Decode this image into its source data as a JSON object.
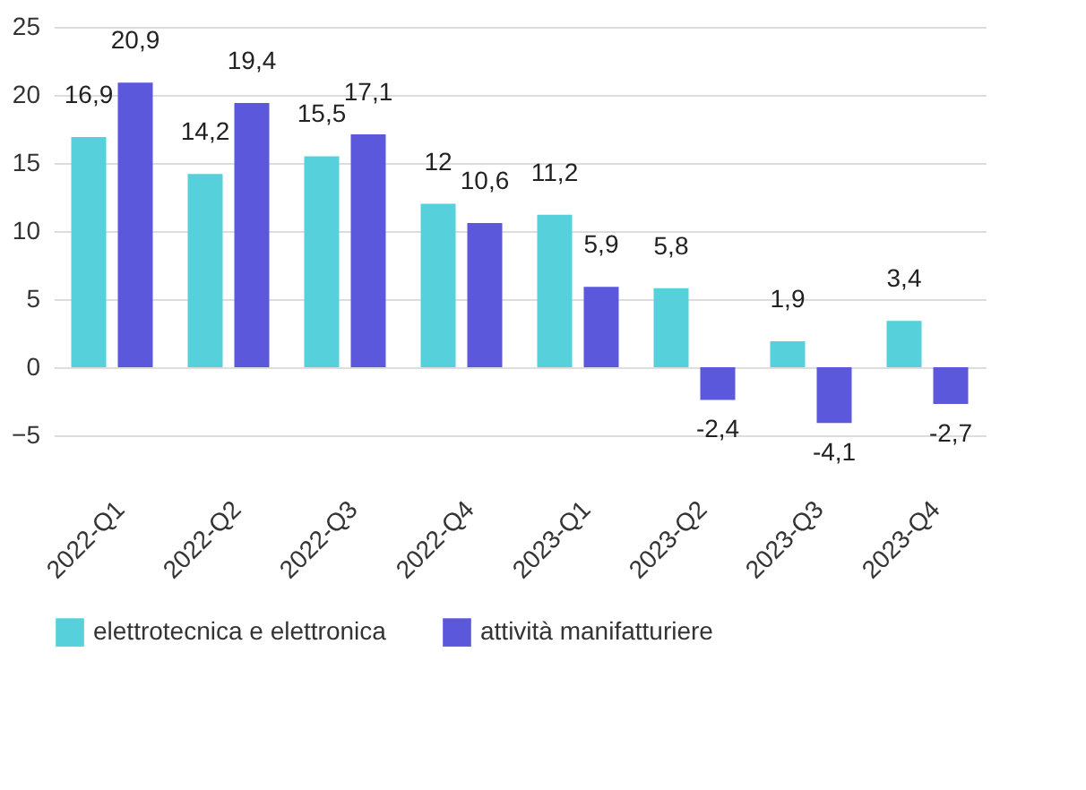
{
  "chart_data": {
    "type": "bar",
    "categories": [
      "2022-Q1",
      "2022-Q2",
      "2022-Q3",
      "2022-Q4",
      "2023-Q1",
      "2023-Q2",
      "2023-Q3",
      "2023-Q4"
    ],
    "series": [
      {
        "name": "elettrotecnica e elettronica",
        "color": "#56d1db",
        "values": [
          16.9,
          14.2,
          15.5,
          12,
          11.2,
          5.8,
          1.9,
          3.4
        ],
        "value_labels": [
          "16,9",
          "14,2",
          "15,5",
          "12",
          "11,2",
          "5,8",
          "1,9",
          "3,4"
        ]
      },
      {
        "name": "attività manifatturiere",
        "color": "#5b58db",
        "values": [
          20.9,
          19.4,
          17.1,
          10.6,
          5.9,
          -2.4,
          -4.1,
          -2.7
        ],
        "value_labels": [
          "20,9",
          "19,4",
          "17,1",
          "10,6",
          "5,9",
          "-2,4",
          "-4,1",
          "-2,7"
        ]
      }
    ],
    "ylim": [
      -5,
      25
    ],
    "yticks": [
      -5,
      0,
      5,
      10,
      15,
      20,
      25
    ],
    "grid": "y",
    "legend": "bottom"
  }
}
